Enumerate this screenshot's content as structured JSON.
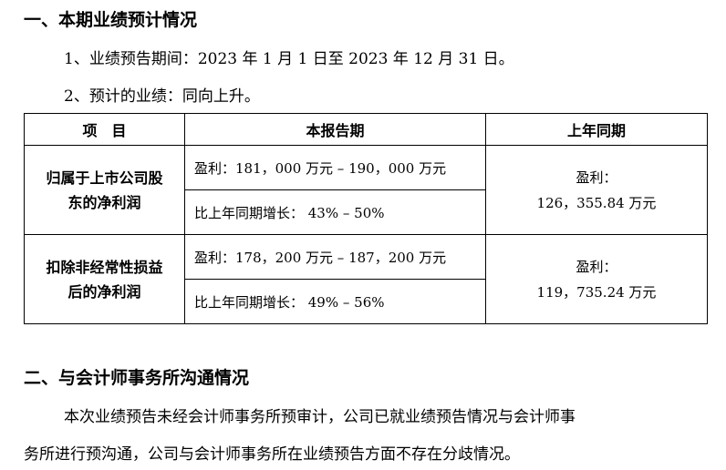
{
  "section1": {
    "title": "一、本期业绩预计情况",
    "item1": "1、业绩预告期间：2023 年 1 月 1 日至 2023 年 12 月 31 日。",
    "item2": "2、预计的业绩：同向上升。"
  },
  "table": {
    "headers": [
      "项　目",
      "本报告期",
      "上年同期"
    ],
    "rows": [
      {
        "label_line1": "归属于上市公司股",
        "label_line2": "东的净利润",
        "profit": "盈利：181，000 万元 – 190，000 万元",
        "growth": "比上年同期增长：  43%  – 50%",
        "prev_line1": "盈利：",
        "prev_line2": "126，355.84 万元"
      },
      {
        "label_line1": "扣除非经常性损益",
        "label_line2": "后的净利润",
        "profit": "盈利：178，200 万元 – 187，200 万元",
        "growth": "比上年同期增长：  49%  – 56%",
        "prev_line1": "盈利：",
        "prev_line2": "119，735.24 万元"
      }
    ]
  },
  "section2": {
    "title": "二、与会计师事务所沟通情况",
    "para_line1": "本次业绩预告未经会计师事务所预审计，公司已就业绩预告情况与会计师事",
    "para_line2": "务所进行预沟通，公司与会计师事务所在业绩预告方面不存在分歧情况。"
  }
}
